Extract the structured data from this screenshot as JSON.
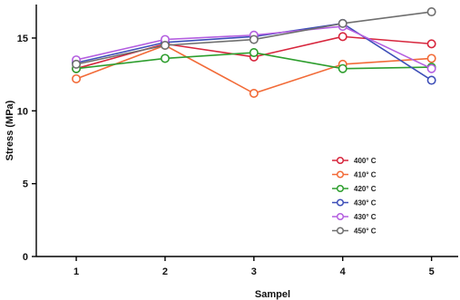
{
  "chart_data": {
    "type": "line",
    "xlabel": "Sampel",
    "ylabel": "Stress (MPa)",
    "x": [
      1,
      2,
      3,
      4,
      5
    ],
    "xlim": [
      0.55,
      5.3
    ],
    "ylim": [
      0,
      17.3
    ],
    "yticks": [
      0,
      5,
      10,
      15
    ],
    "grid": false,
    "legend_position": "lower-right",
    "series": [
      {
        "name": "400° C",
        "color": "#d7263d",
        "values": [
          12.9,
          14.6,
          13.7,
          15.1,
          14.6
        ]
      },
      {
        "name": "410° C",
        "color": "#f26b38",
        "values": [
          12.2,
          14.5,
          11.2,
          13.2,
          13.6
        ]
      },
      {
        "name": "420° C",
        "color": "#2e9e2e",
        "values": [
          12.9,
          13.6,
          14.0,
          12.9,
          13.0
        ]
      },
      {
        "name": "430° C",
        "color": "#3e4fb8",
        "values": [
          13.3,
          14.7,
          15.1,
          16.0,
          12.1
        ]
      },
      {
        "name": "430° C",
        "color": "#b45fe0",
        "values": [
          13.5,
          14.9,
          15.2,
          15.8,
          12.9
        ]
      },
      {
        "name": "450° C",
        "color": "#6f6f6f",
        "values": [
          13.2,
          14.5,
          14.9,
          16.0,
          16.8
        ]
      }
    ]
  }
}
